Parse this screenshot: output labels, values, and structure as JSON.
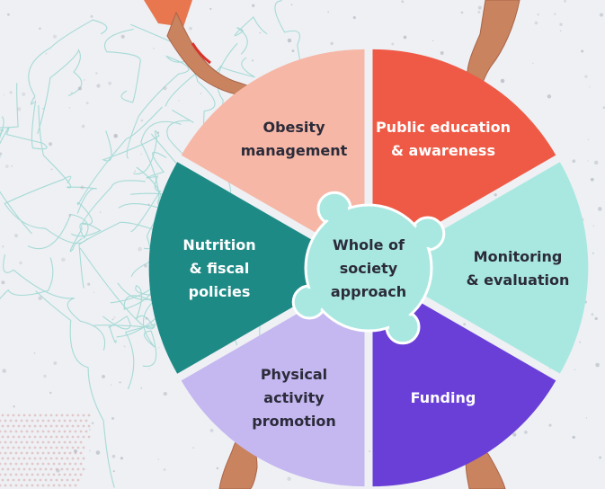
{
  "diagram": {
    "center": {
      "lines": [
        "Whole of",
        "society",
        "approach"
      ]
    },
    "segments": [
      {
        "id": "public-education",
        "lines": [
          "Public education",
          "& awareness"
        ],
        "fill": "#ee5a45",
        "text_color": "#ffffff"
      },
      {
        "id": "monitoring",
        "lines": [
          "Monitoring",
          "& evaluation"
        ],
        "fill": "#a9e8e0",
        "text_color": "#2b2b3a"
      },
      {
        "id": "funding",
        "lines": [
          "Funding"
        ],
        "fill": "#6a3fd8",
        "text_color": "#ffffff"
      },
      {
        "id": "physical-activity",
        "lines": [
          "Physical",
          "activity",
          "promotion"
        ],
        "fill": "#c5b7f0",
        "text_color": "#2b2b3a"
      },
      {
        "id": "nutrition",
        "lines": [
          "Nutrition",
          "& fiscal",
          "policies"
        ],
        "fill": "#1e8a86",
        "text_color": "#ffffff"
      },
      {
        "id": "obesity",
        "lines": [
          "Obesity",
          "management"
        ],
        "fill": "#f6b7a6",
        "text_color": "#2b2b3a"
      }
    ],
    "colors": {
      "background": "#eef0f4",
      "center_fill": "#a9e8e0",
      "center_stroke": "#ffffff",
      "network": "#8fd3cc",
      "speckle": "#b9bec6",
      "skin": "#c9835e",
      "sleeve_orange": "#e8764f",
      "bracelet": "#d9322c"
    }
  }
}
